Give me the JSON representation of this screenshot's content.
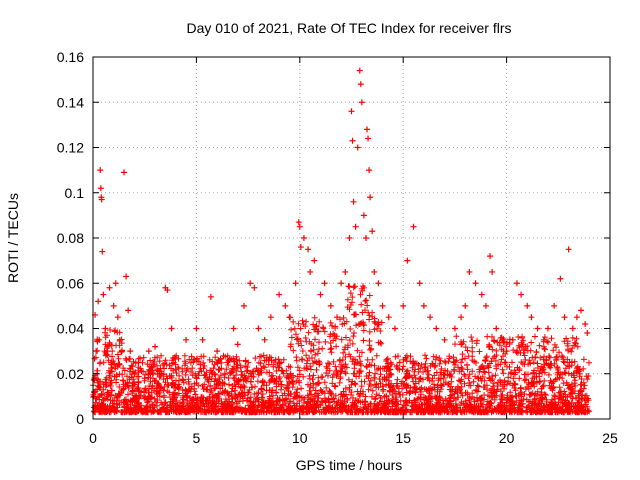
{
  "chart_data": {
    "type": "scatter",
    "title": "Day 010 of 2021, Rate Of TEC Index for receiver flrs",
    "xlabel": "GPS time / hours",
    "ylabel": "ROTI / TECUs",
    "xlim": [
      0,
      25
    ],
    "ylim": [
      0,
      0.16
    ],
    "xticks": [
      0,
      5,
      10,
      15,
      20,
      25
    ],
    "xtick_labels": [
      "0",
      "5",
      "10",
      "15",
      "20",
      "25"
    ],
    "yticks": [
      0,
      0.02,
      0.04,
      0.06,
      0.08,
      0.1,
      0.12,
      0.14,
      0.16
    ],
    "ytick_labels": [
      "0",
      "0.02",
      "0.04",
      "0.06",
      "0.08",
      "0.1",
      "0.12",
      "0.14",
      "0.16"
    ],
    "grid": true,
    "marker": "+",
    "color": "#ff0000",
    "series": [
      {
        "name": "ROTI",
        "points": [
          [
            0.05,
            0.012
          ],
          [
            0.1,
            0.046
          ],
          [
            0.15,
            0.03
          ],
          [
            0.2,
            0.02
          ],
          [
            0.25,
            0.052
          ],
          [
            0.3,
            0.035
          ],
          [
            0.35,
            0.11
          ],
          [
            0.38,
            0.102
          ],
          [
            0.4,
            0.098
          ],
          [
            0.42,
            0.097
          ],
          [
            0.45,
            0.074
          ],
          [
            0.5,
            0.055
          ],
          [
            0.6,
            0.04
          ],
          [
            0.7,
            0.03
          ],
          [
            0.8,
            0.058
          ],
          [
            0.9,
            0.025
          ],
          [
            1.0,
            0.05
          ],
          [
            1.1,
            0.06
          ],
          [
            1.2,
            0.045
          ],
          [
            1.3,
            0.035
          ],
          [
            1.5,
            0.109
          ],
          [
            1.6,
            0.063
          ],
          [
            1.7,
            0.048
          ],
          [
            1.8,
            0.03
          ],
          [
            2.0,
            0.02
          ],
          [
            2.2,
            0.025
          ],
          [
            2.5,
            0.018
          ],
          [
            2.7,
            0.03
          ],
          [
            3.0,
            0.032
          ],
          [
            3.2,
            0.015
          ],
          [
            3.5,
            0.058
          ],
          [
            3.6,
            0.057
          ],
          [
            3.8,
            0.04
          ],
          [
            4.0,
            0.022
          ],
          [
            4.5,
            0.035
          ],
          [
            5.0,
            0.04
          ],
          [
            5.3,
            0.035
          ],
          [
            5.7,
            0.054
          ],
          [
            6.0,
            0.03
          ],
          [
            6.5,
            0.025
          ],
          [
            6.8,
            0.04
          ],
          [
            7.0,
            0.033
          ],
          [
            7.3,
            0.05
          ],
          [
            7.6,
            0.06
          ],
          [
            7.8,
            0.058
          ],
          [
            8.0,
            0.04
          ],
          [
            8.3,
            0.035
          ],
          [
            8.6,
            0.045
          ],
          [
            9.0,
            0.055
          ],
          [
            9.3,
            0.05
          ],
          [
            9.5,
            0.045
          ],
          [
            9.8,
            0.06
          ],
          [
            9.95,
            0.087
          ],
          [
            10.0,
            0.085
          ],
          [
            10.05,
            0.076
          ],
          [
            10.2,
            0.08
          ],
          [
            10.4,
            0.075
          ],
          [
            10.5,
            0.065
          ],
          [
            10.7,
            0.07
          ],
          [
            11.0,
            0.055
          ],
          [
            11.2,
            0.06
          ],
          [
            11.5,
            0.05
          ],
          [
            11.8,
            0.045
          ],
          [
            12.0,
            0.06
          ],
          [
            12.2,
            0.065
          ],
          [
            12.4,
            0.08
          ],
          [
            12.5,
            0.136
          ],
          [
            12.55,
            0.123
          ],
          [
            12.6,
            0.096
          ],
          [
            12.7,
            0.085
          ],
          [
            12.8,
            0.12
          ],
          [
            12.9,
            0.154
          ],
          [
            12.95,
            0.148
          ],
          [
            13.0,
            0.14
          ],
          [
            13.1,
            0.09
          ],
          [
            13.2,
            0.08
          ],
          [
            13.25,
            0.128
          ],
          [
            13.3,
            0.124
          ],
          [
            13.35,
            0.11
          ],
          [
            13.4,
            0.098
          ],
          [
            13.5,
            0.083
          ],
          [
            13.6,
            0.065
          ],
          [
            13.8,
            0.06
          ],
          [
            14.0,
            0.05
          ],
          [
            14.3,
            0.045
          ],
          [
            14.6,
            0.04
          ],
          [
            15.0,
            0.05
          ],
          [
            15.2,
            0.07
          ],
          [
            15.5,
            0.085
          ],
          [
            15.8,
            0.06
          ],
          [
            16.0,
            0.05
          ],
          [
            16.3,
            0.045
          ],
          [
            16.6,
            0.04
          ],
          [
            17.0,
            0.035
          ],
          [
            17.5,
            0.04
          ],
          [
            17.8,
            0.045
          ],
          [
            18.0,
            0.05
          ],
          [
            18.2,
            0.065
          ],
          [
            18.5,
            0.06
          ],
          [
            18.8,
            0.055
          ],
          [
            19.0,
            0.05
          ],
          [
            19.2,
            0.072
          ],
          [
            19.3,
            0.065
          ],
          [
            19.5,
            0.04
          ],
          [
            19.8,
            0.035
          ],
          [
            20.0,
            0.03
          ],
          [
            20.3,
            0.035
          ],
          [
            20.5,
            0.06
          ],
          [
            20.7,
            0.055
          ],
          [
            21.0,
            0.05
          ],
          [
            21.2,
            0.045
          ],
          [
            21.5,
            0.04
          ],
          [
            21.8,
            0.035
          ],
          [
            22.0,
            0.04
          ],
          [
            22.3,
            0.05
          ],
          [
            22.6,
            0.062
          ],
          [
            22.8,
            0.045
          ],
          [
            23.0,
            0.075
          ],
          [
            23.2,
            0.04
          ],
          [
            23.4,
            0.045
          ],
          [
            23.6,
            0.048
          ],
          [
            23.8,
            0.042
          ],
          [
            23.9,
            0.038
          ]
        ]
      }
    ]
  }
}
